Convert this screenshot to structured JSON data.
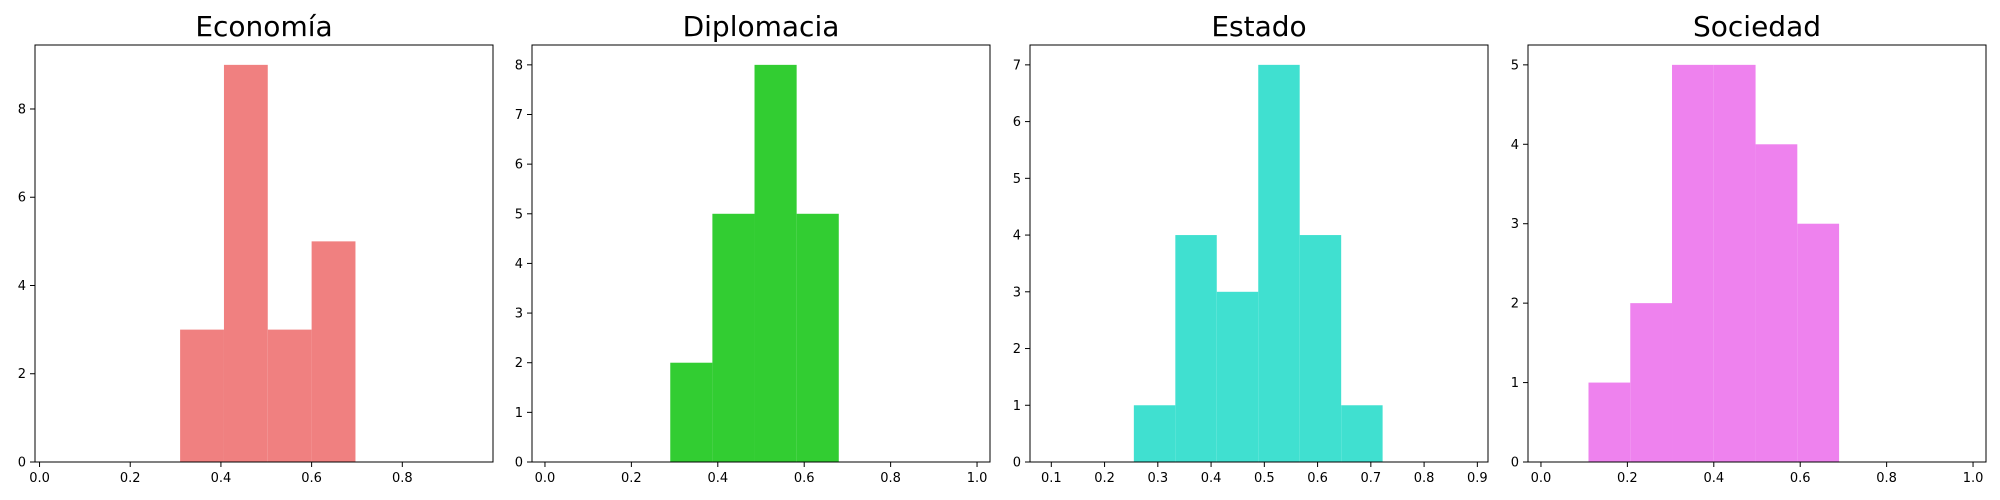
{
  "chart_data": [
    {
      "type": "bar",
      "title": "Economía",
      "color": "#f08080",
      "bins": [
        {
          "x0": 0.31,
          "x1": 0.4067,
          "count": 3
        },
        {
          "x0": 0.4067,
          "x1": 0.5033,
          "count": 9
        },
        {
          "x0": 0.5033,
          "x1": 0.6,
          "count": 3
        },
        {
          "x0": 0.6,
          "x1": 0.6967,
          "count": 5
        }
      ],
      "xlim": [
        -0.01,
        1.0
      ],
      "ylim": [
        0,
        9.45
      ],
      "xticks": [
        0.0,
        0.2,
        0.4,
        0.6,
        0.8
      ],
      "xtick_labels": [
        "0.0",
        "0.2",
        "0.4",
        "0.6",
        "0.8"
      ],
      "yticks": [
        0,
        2,
        4,
        6,
        8
      ],
      "ytick_labels": [
        "0",
        "2",
        "4",
        "6",
        "8"
      ],
      "grid": false
    },
    {
      "type": "bar",
      "title": "Diplomacia",
      "color": "#32cd32",
      "bins": [
        {
          "x0": 0.29,
          "x1": 0.3875,
          "count": 2
        },
        {
          "x0": 0.3875,
          "x1": 0.485,
          "count": 5
        },
        {
          "x0": 0.485,
          "x1": 0.5825,
          "count": 8
        },
        {
          "x0": 0.5825,
          "x1": 0.68,
          "count": 5
        }
      ],
      "xlim": [
        -0.03,
        1.03
      ],
      "ylim": [
        0,
        8.4
      ],
      "xticks": [
        0.0,
        0.2,
        0.4,
        0.6,
        0.8,
        1.0
      ],
      "xtick_labels": [
        "0.0",
        "0.2",
        "0.4",
        "0.6",
        "0.8",
        "1.0"
      ],
      "yticks": [
        0,
        1,
        2,
        3,
        4,
        5,
        6,
        7,
        8
      ],
      "ytick_labels": [
        "0",
        "1",
        "2",
        "3",
        "4",
        "5",
        "6",
        "7",
        "8"
      ],
      "grid": false
    },
    {
      "type": "bar",
      "title": "Estado",
      "color": "#40e0d0",
      "bins": [
        {
          "x0": 0.255,
          "x1": 0.3329,
          "count": 1
        },
        {
          "x0": 0.3329,
          "x1": 0.4107,
          "count": 4
        },
        {
          "x0": 0.4107,
          "x1": 0.4886,
          "count": 3
        },
        {
          "x0": 0.4886,
          "x1": 0.5664,
          "count": 7
        },
        {
          "x0": 0.5664,
          "x1": 0.6443,
          "count": 4
        },
        {
          "x0": 0.6443,
          "x1": 0.7221,
          "count": 1
        }
      ],
      "xlim": [
        0.06,
        0.92
      ],
      "ylim": [
        0,
        7.35
      ],
      "xticks": [
        0.1,
        0.2,
        0.3,
        0.4,
        0.5,
        0.6,
        0.7,
        0.8,
        0.9
      ],
      "xtick_labels": [
        "0.1",
        "0.2",
        "0.3",
        "0.4",
        "0.5",
        "0.6",
        "0.7",
        "0.8",
        "0.9"
      ],
      "yticks": [
        0,
        1,
        2,
        3,
        4,
        5,
        6,
        7
      ],
      "ytick_labels": [
        "0",
        "1",
        "2",
        "3",
        "4",
        "5",
        "6",
        "7"
      ],
      "grid": false
    },
    {
      "type": "bar",
      "title": "Sociedad",
      "color": "#ee82ee",
      "bins": [
        {
          "x0": 0.11,
          "x1": 0.2067,
          "count": 1
        },
        {
          "x0": 0.2067,
          "x1": 0.3033,
          "count": 2
        },
        {
          "x0": 0.3033,
          "x1": 0.4,
          "count": 5
        },
        {
          "x0": 0.4,
          "x1": 0.4967,
          "count": 5
        },
        {
          "x0": 0.4967,
          "x1": 0.5933,
          "count": 4
        },
        {
          "x0": 0.5933,
          "x1": 0.69,
          "count": 3
        }
      ],
      "xlim": [
        -0.03,
        1.03
      ],
      "ylim": [
        0,
        5.25
      ],
      "xticks": [
        0.0,
        0.2,
        0.4,
        0.6,
        0.8,
        1.0
      ],
      "xtick_labels": [
        "0.0",
        "0.2",
        "0.4",
        "0.6",
        "0.8",
        "1.0"
      ],
      "yticks": [
        0,
        1,
        2,
        3,
        4,
        5
      ],
      "ytick_labels": [
        "0",
        "1",
        "2",
        "3",
        "4",
        "5"
      ],
      "grid": false
    }
  ]
}
